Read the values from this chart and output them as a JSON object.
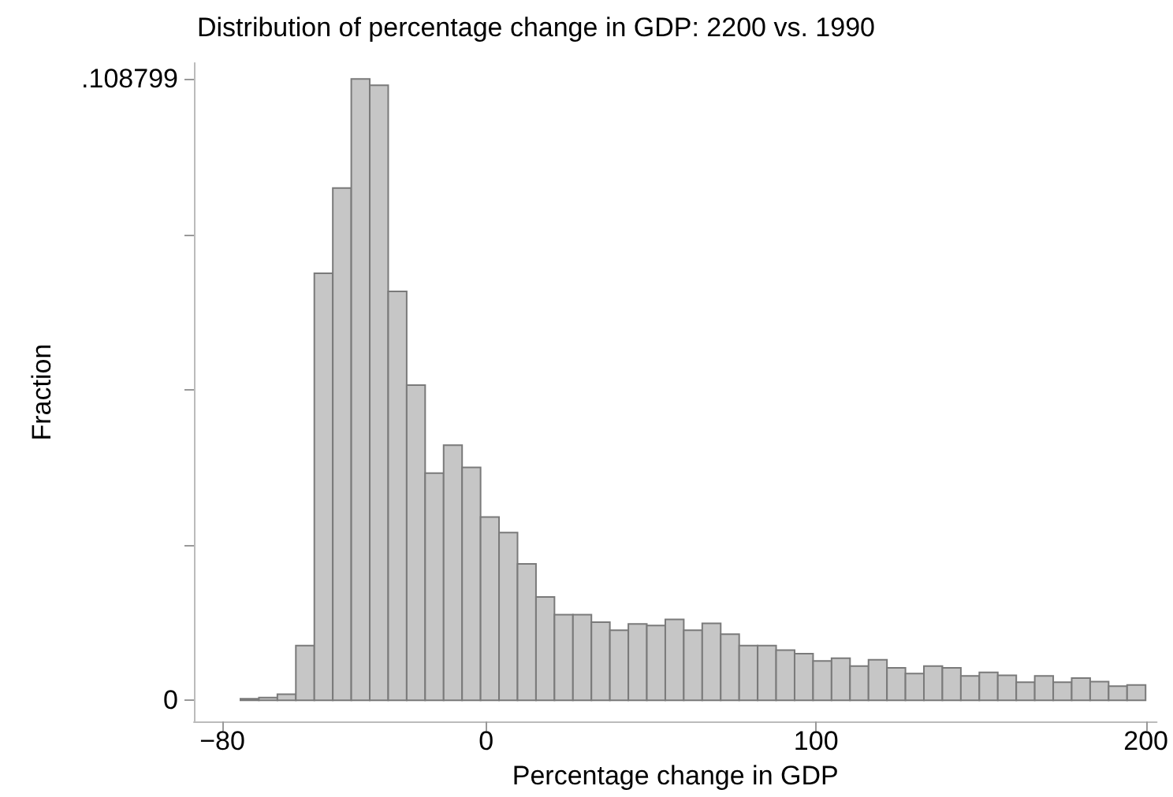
{
  "chart_data": {
    "type": "histogram",
    "title": "Distribution of percentage change in GDP: 2200 vs. 1990",
    "xlabel": "Percentage change in GDP",
    "ylabel": "Fraction",
    "color": "#c6c6c6",
    "bins": [
      -74.5,
      -68.9,
      -63.3,
      -57.7,
      -52.1,
      -46.5,
      -40.9,
      -35.3,
      -29.7,
      -24.1,
      -18.5,
      -12.9,
      -7.3,
      -1.7,
      3.9,
      9.5,
      15.1,
      20.7,
      26.3,
      31.9,
      37.5,
      43.1,
      48.7,
      54.3,
      59.9,
      65.5,
      71.1,
      76.7,
      82.3,
      87.9,
      93.5,
      99.1,
      104.7,
      110.3,
      115.9,
      121.5,
      127.1,
      132.7,
      138.3,
      143.9,
      149.5,
      155.1,
      160.7,
      166.3,
      171.9,
      177.5,
      183.1,
      188.7,
      194.3,
      199.9
    ],
    "values": [
      0.0003,
      0.0005,
      0.0011,
      0.0096,
      0.0748,
      0.0897,
      0.1088,
      0.1077,
      0.0716,
      0.0552,
      0.0398,
      0.0447,
      0.0408,
      0.0321,
      0.0294,
      0.0239,
      0.0181,
      0.015,
      0.015,
      0.0137,
      0.0123,
      0.0134,
      0.0131,
      0.0142,
      0.0123,
      0.0135,
      0.0116,
      0.0096,
      0.0096,
      0.0088,
      0.0082,
      0.0069,
      0.0074,
      0.006,
      0.0071,
      0.0057,
      0.0047,
      0.006,
      0.0057,
      0.0043,
      0.0049,
      0.0044,
      0.0032,
      0.0043,
      0.0032,
      0.0039,
      0.0033,
      0.0025,
      0.0027
    ],
    "xlim": [
      -88.6,
      203.3
    ],
    "xticks": [
      -80,
      0,
      100,
      200
    ],
    "ylim": [
      -0.0037,
      0.1116
    ],
    "yticks": [
      0,
      {
        "value": 0.0271998,
        "label": null
      },
      {
        "value": 0.0543995,
        "label": null
      },
      {
        "value": 0.0815993,
        "label": null
      },
      {
        "value": 0.108799,
        "label": ".108799"
      }
    ],
    "grid": false
  }
}
